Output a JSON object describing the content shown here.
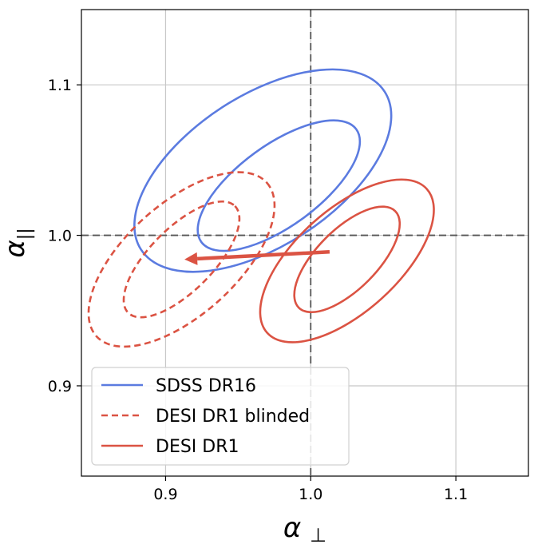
{
  "chart_data": {
    "type": "contour",
    "xlabel": "α",
    "xlabel_sub": "⊥",
    "ylabel": "α",
    "ylabel_sub": "||",
    "xlim": [
      0.842,
      1.15
    ],
    "ylim": [
      0.84,
      1.15
    ],
    "xticks": [
      0.9,
      1.0,
      1.1
    ],
    "yticks": [
      0.9,
      1.0,
      1.1
    ],
    "xtick_labels": [
      "0.9",
      "1.0",
      "1.1"
    ],
    "ytick_labels": [
      "0.9",
      "1.0",
      "1.1"
    ],
    "grid": true,
    "reference_lines": {
      "x": 1.0,
      "y": 1.0,
      "style": "dashed",
      "color": "#555555"
    },
    "legend_position": "lower-left",
    "series": [
      {
        "name": "SDSS DR16",
        "color": "#5b7be0",
        "style": "solid",
        "contours": [
          {
            "level": "inner",
            "center": [
              0.978,
              1.033
            ],
            "semi_axes": [
              0.066,
              0.027
            ],
            "angle_deg": -36
          },
          {
            "level": "outer",
            "center": [
              0.967,
              1.043
            ],
            "semi_axes": [
              0.1,
              0.05
            ],
            "angle_deg": -33
          }
        ]
      },
      {
        "name": "DESI DR1 blinded",
        "color": "#db5343",
        "style": "dashed",
        "contours": [
          {
            "level": "inner",
            "center": [
              0.911,
              0.984
            ],
            "semi_axes": [
              0.052,
              0.021
            ],
            "angle_deg": -45
          },
          {
            "level": "outer",
            "center": [
              0.911,
              0.984
            ],
            "semi_axes": [
              0.079,
              0.037
            ],
            "angle_deg": -42
          }
        ]
      },
      {
        "name": "DESI DR1",
        "color": "#db5343",
        "style": "solid",
        "contours": [
          {
            "level": "inner",
            "center": [
              1.025,
              0.984
            ],
            "semi_axes": [
              0.047,
              0.02
            ],
            "angle_deg": -45
          },
          {
            "level": "outer",
            "center": [
              1.025,
              0.983
            ],
            "semi_axes": [
              0.074,
              0.034
            ],
            "angle_deg": -42
          }
        ]
      }
    ],
    "arrow": {
      "from": [
        1.013,
        0.989
      ],
      "to": [
        0.913,
        0.984
      ],
      "color": "#db5343"
    }
  }
}
